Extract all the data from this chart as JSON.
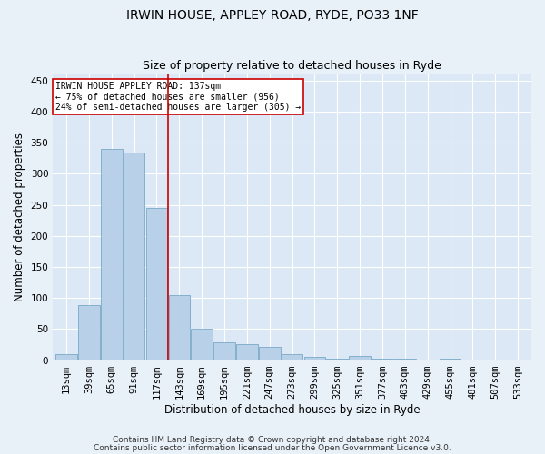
{
  "title": "IRWIN HOUSE, APPLEY ROAD, RYDE, PO33 1NF",
  "subtitle": "Size of property relative to detached houses in Ryde",
  "xlabel": "Distribution of detached houses by size in Ryde",
  "ylabel": "Number of detached properties",
  "footnote1": "Contains HM Land Registry data © Crown copyright and database right 2024.",
  "footnote2": "Contains public sector information licensed under the Open Government Licence v3.0.",
  "annotation_line1": "IRWIN HOUSE APPLEY ROAD: 137sqm",
  "annotation_line2": "← 75% of detached houses are smaller (956)",
  "annotation_line3": "24% of semi-detached houses are larger (305) →",
  "bar_color": "#b8d0e8",
  "bar_edge_color": "#6a9fc0",
  "vline_color": "#cc0000",
  "categories": [
    "13sqm",
    "39sqm",
    "65sqm",
    "91sqm",
    "117sqm",
    "143sqm",
    "169sqm",
    "195sqm",
    "221sqm",
    "247sqm",
    "273sqm",
    "299sqm",
    "325sqm",
    "351sqm",
    "377sqm",
    "403sqm",
    "429sqm",
    "455sqm",
    "481sqm",
    "507sqm",
    "533sqm"
  ],
  "values": [
    10,
    88,
    340,
    335,
    245,
    105,
    50,
    28,
    25,
    21,
    10,
    5,
    3,
    6,
    3,
    2,
    1,
    2,
    1,
    1,
    1
  ],
  "ylim": [
    0,
    460
  ],
  "yticks": [
    0,
    50,
    100,
    150,
    200,
    250,
    300,
    350,
    400,
    450
  ],
  "bg_color": "#e8f0f8",
  "plot_bg_color": "#dce8f5",
  "grid_color": "#ffffff",
  "title_fontsize": 10,
  "subtitle_fontsize": 9,
  "tick_fontsize": 7.5,
  "label_fontsize": 8.5,
  "footnote_fontsize": 6.5,
  "annot_fontsize": 7
}
